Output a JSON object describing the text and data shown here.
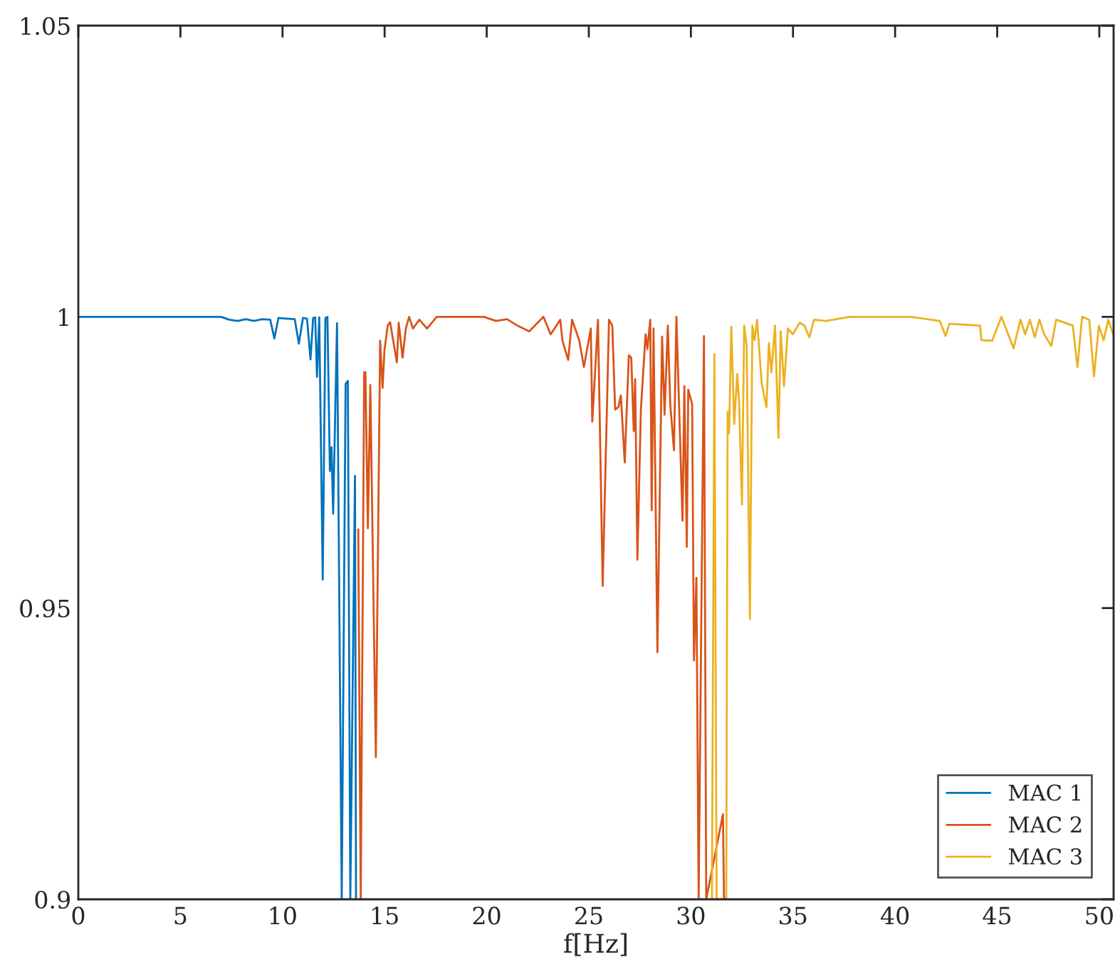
{
  "chart_data": {
    "type": "line",
    "xlabel": "f[Hz]",
    "xlim": [
      0,
      50.7
    ],
    "xticks": [
      0,
      5,
      10,
      15,
      20,
      25,
      30,
      35,
      40,
      45,
      50
    ],
    "ylim": [
      0.9,
      1.05
    ],
    "yticks": [
      0.9,
      0.95,
      1,
      1.05
    ],
    "grid": false,
    "legend": "bottom right",
    "marker": "none",
    "line_style": "solid",
    "series": [
      {
        "name": "MAC 1",
        "color": "#0072bd",
        "x": [
          0,
          3,
          7,
          7.4,
          7.8,
          8.2,
          8.6,
          9,
          9.4,
          9.6,
          9.8,
          10.2,
          10.6,
          10.8,
          11.0,
          11.2,
          11.37,
          11.5,
          11.6,
          11.69,
          11.8,
          11.97,
          12.1,
          12.2,
          12.32,
          12.4,
          12.48,
          12.67,
          12.9,
          13.09,
          13.2,
          13.32,
          13.55,
          13.6
        ],
        "values": [
          1.0,
          1.0,
          1.0,
          0.9995,
          0.9993,
          0.9996,
          0.9993,
          0.9996,
          0.9995,
          0.9963,
          0.9998,
          0.9997,
          0.9996,
          0.9954,
          0.9998,
          0.9997,
          0.9927,
          0.9998,
          0.9999,
          0.9897,
          0.9999,
          0.9549,
          0.9998,
          1.0,
          0.9735,
          0.9776,
          0.9662,
          0.9989,
          0.9,
          0.9885,
          0.989,
          0.9,
          0.9727,
          0.9
        ]
      },
      {
        "name": "MAC 2",
        "color": "#d95319",
        "x": [
          13.71,
          13.83,
          14.0,
          14.06,
          14.18,
          14.3,
          14.57,
          14.78,
          14.9,
          14.99,
          15.15,
          15.27,
          15.6,
          15.69,
          15.88,
          16.04,
          16.2,
          16.39,
          16.7,
          17.08,
          17.55,
          17.78,
          19.87,
          20.45,
          21.0,
          21.5,
          22.08,
          22.78,
          23.13,
          23.6,
          23.71,
          23.99,
          24.18,
          24.53,
          24.76,
          25.1,
          25.17,
          25.45,
          25.68,
          25.99,
          26.15,
          26.29,
          26.45,
          26.57,
          26.76,
          26.96,
          27.08,
          27.2,
          27.27,
          27.38,
          27.55,
          27.78,
          27.87,
          28.01,
          28.08,
          28.17,
          28.36,
          28.59,
          28.71,
          28.87,
          28.99,
          29.17,
          29.29,
          29.59,
          29.68,
          29.8,
          29.87,
          30.06,
          30.15,
          30.27,
          30.38,
          30.64,
          30.75,
          31.57,
          31.62
        ],
        "values": [
          0.9635,
          0.9,
          0.9905,
          0.9905,
          0.9637,
          0.9883,
          0.9244,
          0.9959,
          0.9878,
          0.9942,
          0.9985,
          0.9991,
          0.9922,
          0.999,
          0.993,
          0.998,
          1.0,
          0.998,
          0.9995,
          0.998,
          1.0,
          1.0,
          1.0,
          0.9993,
          0.9996,
          0.9985,
          0.9975,
          1.0,
          0.997,
          0.9995,
          0.9959,
          0.9926,
          0.9995,
          0.996,
          0.9914,
          0.998,
          0.982,
          0.9995,
          0.9538,
          0.9995,
          0.9985,
          0.9841,
          0.9845,
          0.9865,
          0.975,
          0.9934,
          0.993,
          0.9804,
          0.9893,
          0.9583,
          0.984,
          0.997,
          0.9945,
          0.9995,
          0.9668,
          0.998,
          0.9424,
          0.9966,
          0.9832,
          0.9985,
          0.985,
          0.9771,
          1.0,
          0.965,
          0.9881,
          0.9605,
          0.9875,
          0.985,
          0.941,
          0.9552,
          0.9,
          0.9967,
          0.9,
          0.9146,
          0.9
        ]
      },
      {
        "name": "MAC 3",
        "color": "#edb120",
        "x": [
          31.03,
          31.15,
          31.26,
          31.73,
          31.8,
          31.87,
          31.98,
          32.12,
          32.27,
          32.36,
          32.5,
          32.61,
          32.73,
          32.89,
          33.01,
          33.12,
          33.24,
          33.47,
          33.7,
          33.82,
          33.94,
          34.12,
          34.29,
          34.4,
          34.56,
          34.75,
          34.99,
          35.33,
          35.56,
          35.8,
          36.03,
          36.61,
          37.77,
          40.79,
          42.19,
          42.47,
          42.66,
          44.16,
          44.23,
          44.75,
          45.21,
          45.8,
          46.14,
          46.37,
          46.6,
          46.84,
          47.07,
          47.3,
          47.65,
          47.89,
          48.7,
          48.93,
          49.16,
          49.51,
          49.74,
          49.98,
          50.21,
          50.44,
          50.68
        ],
        "values": [
          0.9,
          0.9936,
          0.9,
          0.9,
          0.9837,
          0.98,
          0.9983,
          0.9816,
          0.9902,
          0.9855,
          0.9678,
          0.9985,
          0.995,
          0.9481,
          0.9985,
          0.996,
          0.9995,
          0.9885,
          0.9845,
          0.9955,
          0.9905,
          0.9985,
          0.9792,
          0.9975,
          0.9881,
          0.998,
          0.997,
          0.999,
          0.9985,
          0.9965,
          0.9995,
          0.9993,
          1.0,
          1.0,
          0.9993,
          0.9967,
          0.9988,
          0.9985,
          0.996,
          0.9959,
          1.0,
          0.9946,
          0.9995,
          0.997,
          0.9995,
          0.9965,
          0.9995,
          0.997,
          0.995,
          0.9995,
          0.9985,
          0.9914,
          1.0,
          0.9995,
          0.9898,
          0.9985,
          0.996,
          0.9995,
          0.997
        ]
      }
    ]
  }
}
